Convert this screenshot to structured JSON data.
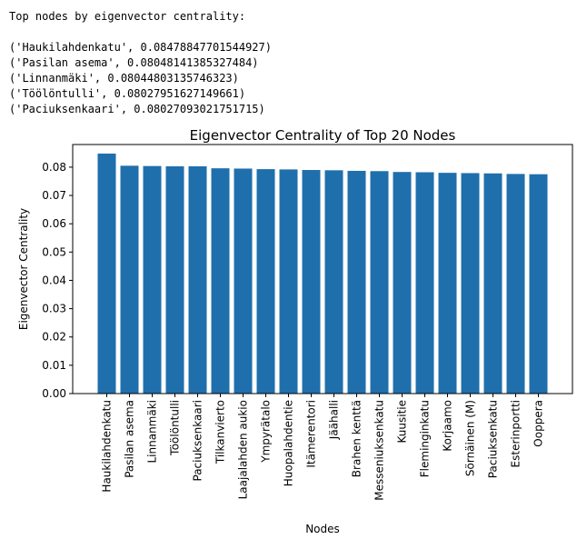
{
  "console": {
    "lines": [
      "Top nodes by eigenvector centrality:",
      "",
      "('Haukilahdenkatu', 0.08478847701544927)",
      "('Pasilan asema', 0.08048141385327484)",
      "('Linnanmäki', 0.08044803135746323)",
      "('Töölöntulli', 0.08027951627149661)",
      "('Paciuksenkaari', 0.08027093021751715)"
    ]
  },
  "chart_data": {
    "type": "bar",
    "title": "Eigenvector Centrality of Top 20 Nodes",
    "xlabel": "Nodes",
    "ylabel": "Eigenvector Centrality",
    "ylim": [
      0,
      0.088
    ],
    "yticks": [
      "0.00",
      "0.01",
      "0.02",
      "0.03",
      "0.04",
      "0.05",
      "0.06",
      "0.07",
      "0.08"
    ],
    "grid": false,
    "bar_color": "#1f6fad",
    "categories": [
      "Haukilahdenkatu",
      "Pasilan asema",
      "Linnanmäki",
      "Töölöntulli",
      "Paciuksenkaari",
      "Tilkanvierto",
      "Laajalahden aukio",
      "Ympyrätalo",
      "Huopalahdentie",
      "Itämerentori",
      "Jäähalli",
      "Brahen kenttä",
      "Messeniuksenkatu",
      "Kuusitie",
      "Fleminginkatu",
      "Korjaamo",
      "Sörnäinen (M)",
      "Paciuksenkatu",
      "Esterinportti",
      "Ooppera"
    ],
    "values": [
      0.0848,
      0.0805,
      0.0804,
      0.0803,
      0.0803,
      0.0796,
      0.0795,
      0.0793,
      0.0792,
      0.079,
      0.0789,
      0.0787,
      0.0786,
      0.0783,
      0.0782,
      0.078,
      0.0779,
      0.0778,
      0.0776,
      0.0775
    ]
  }
}
